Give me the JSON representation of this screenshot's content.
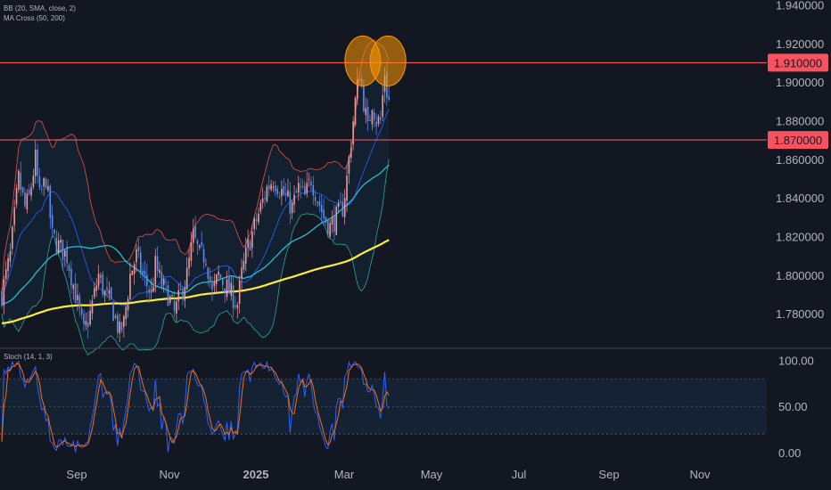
{
  "indicators": {
    "bb": "BB (20, SMA, close, 2)",
    "ma": "MA Cross (50, 200)",
    "stoch": "Stoch (14, 1, 3)"
  },
  "chart_data": [
    {
      "type": "candlestick",
      "title": "",
      "xlabel": "",
      "ylabel": "",
      "x_tick_labels": [
        "Sep",
        "Nov",
        "2025",
        "Mar",
        "May",
        "Jul",
        "Sep",
        "Nov"
      ],
      "y_tick_labels": [
        "1.940000",
        "1.920000",
        "1.900000",
        "1.880000",
        "1.860000",
        "1.840000",
        "1.820000",
        "1.800000",
        "1.780000"
      ],
      "ylim": [
        1.7625,
        1.9425
      ],
      "horizontal_levels": [
        {
          "label": "1.910000",
          "value": 1.91
        },
        {
          "label": "1.870000",
          "value": 1.87
        }
      ],
      "highlight_circles": [
        {
          "at": "early Mar 2025 high",
          "value": 1.91
        },
        {
          "at": "mid Mar 2025 high",
          "value": 1.91
        }
      ],
      "anchors": [
        [
          0,
          1.79
        ],
        [
          4,
          1.81
        ],
        [
          8,
          1.85
        ],
        [
          11,
          1.835
        ],
        [
          13,
          1.84
        ],
        [
          16,
          1.86
        ],
        [
          18,
          1.84
        ],
        [
          21,
          1.85
        ],
        [
          24,
          1.82
        ],
        [
          27,
          1.815
        ],
        [
          31,
          1.81
        ],
        [
          35,
          1.79
        ],
        [
          39,
          1.77
        ],
        [
          42,
          1.78
        ],
        [
          46,
          1.8
        ],
        [
          49,
          1.79
        ],
        [
          52,
          1.785
        ],
        [
          56,
          1.77
        ],
        [
          58,
          1.775
        ],
        [
          61,
          1.8
        ],
        [
          64,
          1.81
        ],
        [
          67,
          1.8
        ],
        [
          71,
          1.79
        ],
        [
          73,
          1.805
        ],
        [
          76,
          1.795
        ],
        [
          79,
          1.79
        ],
        [
          82,
          1.78
        ],
        [
          85,
          1.79
        ],
        [
          88,
          1.8
        ],
        [
          91,
          1.82
        ],
        [
          94,
          1.81
        ],
        [
          97,
          1.81
        ],
        [
          100,
          1.79
        ],
        [
          103,
          1.8
        ],
        [
          106,
          1.795
        ],
        [
          109,
          1.79
        ],
        [
          112,
          1.785
        ],
        [
          114,
          1.8
        ],
        [
          117,
          1.815
        ],
        [
          120,
          1.825
        ],
        [
          123,
          1.835
        ],
        [
          126,
          1.845
        ],
        [
          129,
          1.85
        ],
        [
          132,
          1.845
        ],
        [
          135,
          1.84
        ],
        [
          138,
          1.835
        ],
        [
          141,
          1.845
        ],
        [
          144,
          1.84
        ],
        [
          147,
          1.85
        ],
        [
          150,
          1.84
        ],
        [
          153,
          1.83
        ],
        [
          156,
          1.825
        ],
        [
          159,
          1.83
        ],
        [
          162,
          1.835
        ],
        [
          164,
          1.85
        ],
        [
          166,
          1.87
        ],
        [
          168,
          1.89
        ],
        [
          170,
          1.905
        ],
        [
          172,
          1.89
        ],
        [
          174,
          1.875
        ],
        [
          176,
          1.89
        ],
        [
          178,
          1.88
        ],
        [
          180,
          1.88
        ],
        [
          182,
          1.905
        ],
        [
          183,
          1.895
        ],
        [
          184,
          1.89
        ]
      ],
      "bollinger": {
        "period": 20,
        "multiplier": 2
      },
      "moving_averages": [
        {
          "period": 50,
          "color": "#26c6da"
        },
        {
          "period": 200,
          "color": "#ffeb3b"
        }
      ],
      "colors": {
        "up": "#ef9a9a",
        "down": "#5b8def",
        "bb_upper": "#e0524b",
        "bb_lower": "#26a69a",
        "bb_basis": "#2962ff",
        "level": "#f7525f"
      }
    },
    {
      "type": "line",
      "title": "",
      "y_tick_labels": [
        "100.00",
        "50.00",
        "0.00"
      ],
      "ylim": [
        -2,
        112
      ],
      "band": [
        20,
        80
      ],
      "series_colors": {
        "k": "#2962ff",
        "d": "#ff6d00"
      }
    }
  ]
}
